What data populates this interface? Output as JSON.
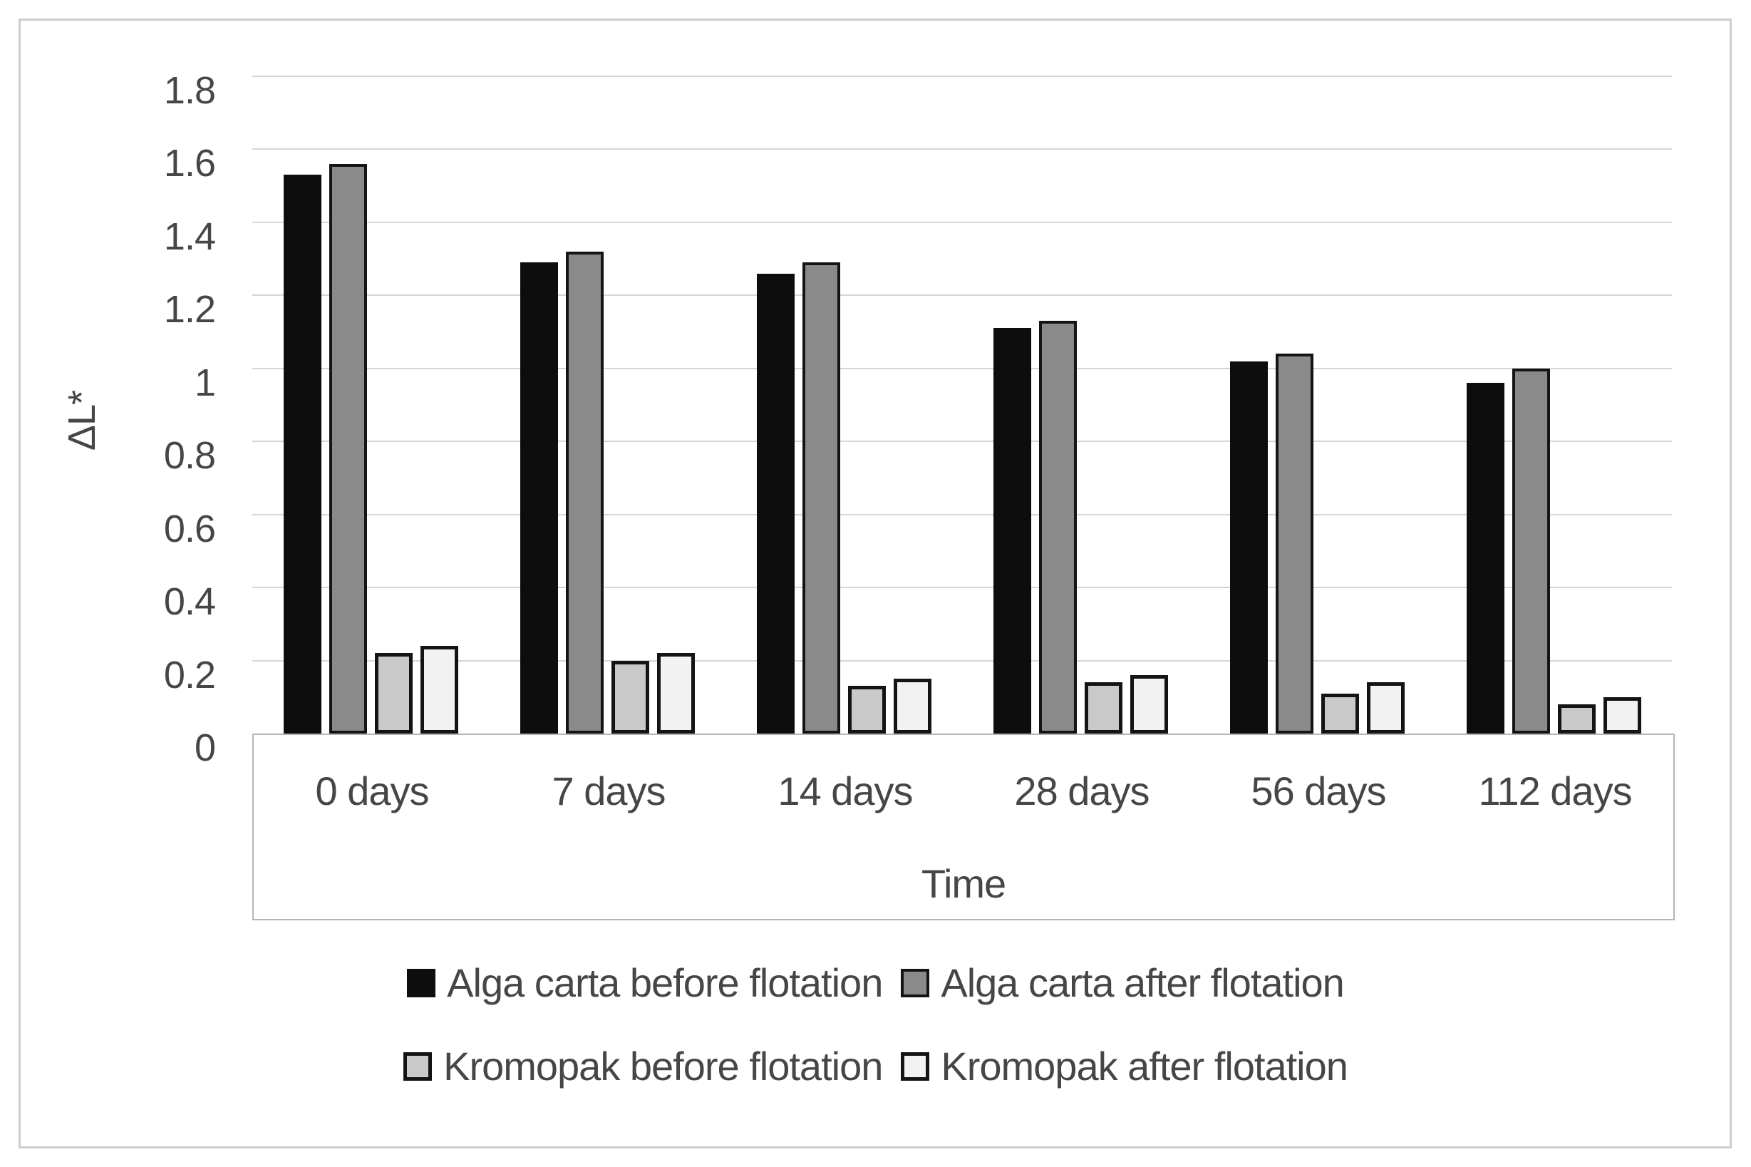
{
  "figure": {
    "background": "#ffffff",
    "outer_border_color": "#cdcdcd",
    "axis_box_border_color": "#b5b5b5",
    "gridline_color": "#d6d6d6",
    "text_color": "#464646"
  },
  "chart_data": {
    "type": "bar",
    "title": "",
    "xlabel": "Time",
    "ylabel": "ΔL*",
    "ylim": [
      0,
      1.8
    ],
    "ytick_step": 0.2,
    "ytick_labels": [
      "1.8",
      "1.6",
      "1.4",
      "1.2",
      "1",
      "0.8",
      "0.6",
      "0.4",
      "0.2",
      "0"
    ],
    "grid": true,
    "legend_position": "bottom-two-rows",
    "categories": [
      "0 days",
      "7 days",
      "14 days",
      "28 days",
      "56 days",
      "112 days"
    ],
    "series": [
      {
        "name": "Alga carta before flotation",
        "values": [
          1.53,
          1.29,
          1.26,
          1.11,
          1.02,
          0.96
        ],
        "fill": "#0d0d0d",
        "border": "#0d0d0d",
        "border_width": 0
      },
      {
        "name": "Alga carta after flotation",
        "values": [
          1.56,
          1.32,
          1.29,
          1.13,
          1.04,
          1.0
        ],
        "fill": "#8a8a8a",
        "border": "#141414",
        "border_width": 4
      },
      {
        "name": "Kromopak before flotation",
        "values": [
          0.22,
          0.2,
          0.13,
          0.14,
          0.11,
          0.08
        ],
        "fill": "#c9c9c9",
        "border": "#141414",
        "border_width": 5
      },
      {
        "name": "Kromopak after flotation",
        "values": [
          0.24,
          0.22,
          0.15,
          0.16,
          0.14,
          0.1
        ],
        "fill": "#f2f2f2",
        "border": "#141414",
        "border_width": 5
      }
    ]
  }
}
